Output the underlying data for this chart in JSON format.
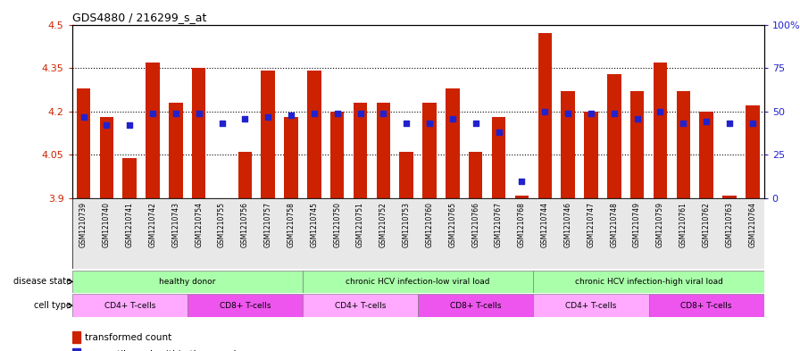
{
  "title": "GDS4880 / 216299_s_at",
  "samples": [
    "GSM1210739",
    "GSM1210740",
    "GSM1210741",
    "GSM1210742",
    "GSM1210743",
    "GSM1210754",
    "GSM1210755",
    "GSM1210756",
    "GSM1210757",
    "GSM1210758",
    "GSM1210745",
    "GSM1210750",
    "GSM1210751",
    "GSM1210752",
    "GSM1210753",
    "GSM1210760",
    "GSM1210765",
    "GSM1210766",
    "GSM1210767",
    "GSM1210768",
    "GSM1210744",
    "GSM1210746",
    "GSM1210747",
    "GSM1210748",
    "GSM1210749",
    "GSM1210759",
    "GSM1210761",
    "GSM1210762",
    "GSM1210763",
    "GSM1210764"
  ],
  "bar_values": [
    4.28,
    4.18,
    4.04,
    4.37,
    4.23,
    4.35,
    3.9,
    4.06,
    4.34,
    4.18,
    4.34,
    4.2,
    4.23,
    4.23,
    4.06,
    4.23,
    4.28,
    4.06,
    4.18,
    3.91,
    4.47,
    4.27,
    4.2,
    4.33,
    4.27,
    4.37,
    4.27,
    4.2,
    3.91,
    4.22
  ],
  "percentile_values": [
    47,
    42,
    42,
    49,
    49,
    49,
    43,
    46,
    47,
    48,
    49,
    49,
    49,
    49,
    43,
    43,
    46,
    43,
    38,
    10,
    50,
    49,
    49,
    49,
    46,
    50,
    43,
    44,
    43,
    43
  ],
  "ymin": 3.9,
  "ymax": 4.5,
  "bar_color": "#cc2200",
  "dot_color": "#2222cc",
  "ds_groups": [
    {
      "label": "healthy donor",
      "start": 0,
      "end": 10
    },
    {
      "label": "chronic HCV infection-low viral load",
      "start": 10,
      "end": 20
    },
    {
      "label": "chronic HCV infection-high viral load",
      "start": 20,
      "end": 30
    }
  ],
  "ct_groups": [
    {
      "label": "CD4+ T-cells",
      "start": 0,
      "end": 5,
      "color": "#ffaaff"
    },
    {
      "label": "CD8+ T-cells",
      "start": 5,
      "end": 10,
      "color": "#ee55ee"
    },
    {
      "label": "CD4+ T-cells",
      "start": 10,
      "end": 15,
      "color": "#ffaaff"
    },
    {
      "label": "CD8+ T-cells",
      "start": 15,
      "end": 20,
      "color": "#ee55ee"
    },
    {
      "label": "CD4+ T-cells",
      "start": 20,
      "end": 25,
      "color": "#ffaaff"
    },
    {
      "label": "CD8+ T-cells",
      "start": 25,
      "end": 30,
      "color": "#ee55ee"
    }
  ],
  "ds_color": "#aaffaa",
  "yticks": [
    3.9,
    4.05,
    4.2,
    4.35,
    4.5
  ],
  "ytick_labels": [
    "3.9",
    "4.05",
    "4.2",
    "4.35",
    "4.5"
  ],
  "right_yticks": [
    0,
    25,
    50,
    75,
    100
  ],
  "right_ytick_labels": [
    "0",
    "25",
    "50",
    "75",
    "100%"
  ]
}
